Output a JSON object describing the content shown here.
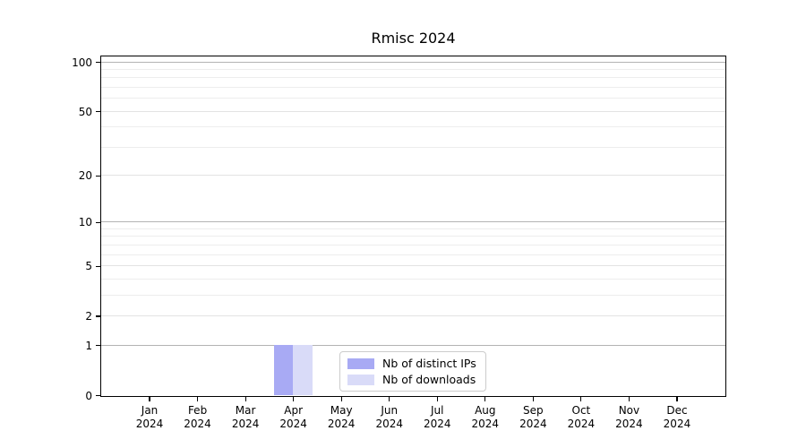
{
  "figure": {
    "background": "#ffffff"
  },
  "chart_data": {
    "type": "bar",
    "title": "Rmisc 2024",
    "x": [
      {
        "month": "Jan",
        "year": "2024"
      },
      {
        "month": "Feb",
        "year": "2024"
      },
      {
        "month": "Mar",
        "year": "2024"
      },
      {
        "month": "Apr",
        "year": "2024"
      },
      {
        "month": "May",
        "year": "2024"
      },
      {
        "month": "Jun",
        "year": "2024"
      },
      {
        "month": "Jul",
        "year": "2024"
      },
      {
        "month": "Aug",
        "year": "2024"
      },
      {
        "month": "Sep",
        "year": "2024"
      },
      {
        "month": "Oct",
        "year": "2024"
      },
      {
        "month": "Nov",
        "year": "2024"
      },
      {
        "month": "Dec",
        "year": "2024"
      }
    ],
    "series": [
      {
        "name": "Nb of distinct IPs",
        "color": "#a8aaf4",
        "values": [
          0,
          0,
          0,
          1,
          0,
          0,
          0,
          0,
          0,
          0,
          0,
          0
        ]
      },
      {
        "name": "Nb of downloads",
        "color": "#d9dbf8",
        "values": [
          0,
          0,
          0,
          1,
          0,
          0,
          0,
          0,
          0,
          0,
          0,
          0
        ]
      }
    ],
    "yscale": "log1p",
    "ylim": [
      0,
      108
    ],
    "yticks": [
      0,
      1,
      2,
      5,
      10,
      20,
      50,
      100
    ],
    "minor_gridlines": [
      3,
      4,
      6,
      7,
      8,
      9,
      30,
      40,
      60,
      70,
      80,
      90
    ],
    "major_gridlines": [
      1,
      10,
      100
    ],
    "grid": true,
    "legend_position": "bottom-center",
    "colors": {
      "major_grid": "#b3b3b3",
      "tick_grid": "#e3e3e3",
      "minor_grid": "#ededed",
      "axis": "#000000",
      "text": "#000000",
      "legend_border": "#cccccc"
    }
  }
}
